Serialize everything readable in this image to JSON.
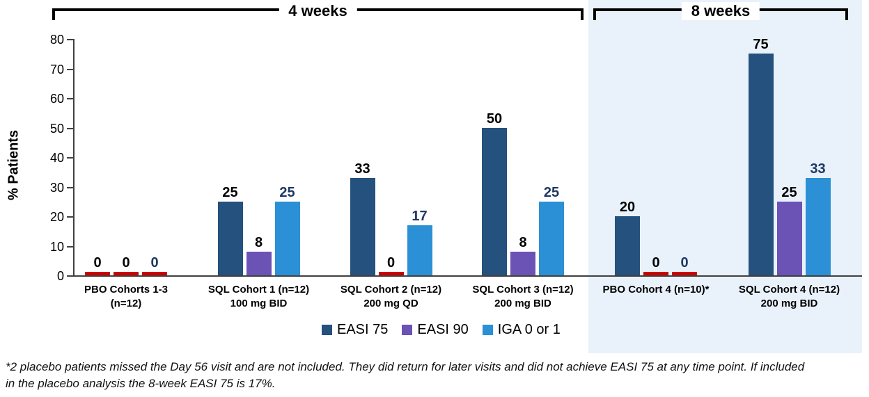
{
  "brackets": [
    {
      "label": "4 weeks"
    },
    {
      "label": "8 weeks"
    }
  ],
  "y_axis": {
    "label": "% Patients",
    "ticks": [
      0,
      10,
      20,
      30,
      40,
      50,
      60,
      70,
      80
    ]
  },
  "chart_data": {
    "type": "bar",
    "title": "",
    "ylabel": "% Patients",
    "ylim": [
      0,
      80
    ],
    "grid": false,
    "legend_position": "bottom",
    "categories": [
      [
        "PBO Cohorts 1-3",
        "(n=12)"
      ],
      [
        "SQL Cohort 1 (n=12)",
        "100 mg BID"
      ],
      [
        "SQL Cohort 2 (n=12)",
        "200 mg QD"
      ],
      [
        "SQL Cohort 3 (n=12)",
        "200 mg BID"
      ],
      [
        "PBO Cohort 4 (n=10)*"
      ],
      [
        "SQL Cohort 4 (n=12)",
        "200 mg BID"
      ]
    ],
    "series": [
      {
        "name": "EASI 75",
        "color": "#24517e",
        "label_color": "#000000",
        "values": [
          0,
          25,
          33,
          50,
          20,
          75
        ]
      },
      {
        "name": "EASI 90",
        "color": "#6b52b5",
        "label_color": "#000000",
        "values": [
          0,
          8,
          0,
          8,
          0,
          25
        ]
      },
      {
        "name": "IGA 0 or 1",
        "color": "#2b90d5",
        "label_color": "#1f3864",
        "values": [
          0,
          25,
          17,
          25,
          0,
          33
        ]
      }
    ],
    "zero_bar_color": "#cc0000",
    "highlight_region": {
      "label": "8 weeks",
      "color": "#e9f2fb",
      "categories": [
        "PBO Cohort 4 (n=10)*",
        "SQL Cohort 4 (n=12) 200 mg BID"
      ]
    }
  },
  "footnote": "*2 placebo patients missed the Day 56 visit and are not included. They did return for later visits and did not achieve EASI 75 at any time point. If included in the placebo analysis the 8-week EASI 75 is 17%."
}
